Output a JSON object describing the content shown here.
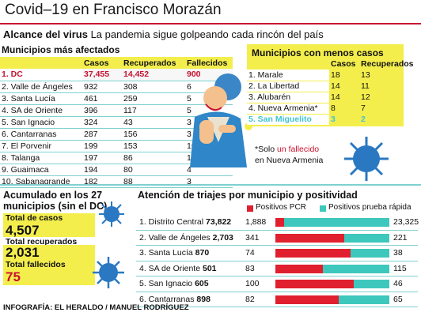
{
  "title": "Covid–19 en Francisco Morazán",
  "subhead": {
    "bold": "Alcance del virus",
    "text": "La pandemia sigue golpeando cada rincón del país"
  },
  "most_affected": {
    "heading": "Municipios más afectados",
    "columns": [
      "Casos",
      "Recuperados",
      "Fallecidos"
    ],
    "rows": [
      [
        "1. DC",
        "37,455",
        "14,452",
        "900"
      ],
      [
        "2. Valle de Ángeles",
        "932",
        "308",
        "6"
      ],
      [
        "3. Santa Lucía",
        "461",
        "259",
        "5"
      ],
      [
        "4. SA de Oriente",
        "396",
        "117",
        "5"
      ],
      [
        "5. San Ignacio",
        "324",
        "43",
        "3"
      ],
      [
        "6. Cantarranas",
        "287",
        "156",
        "3"
      ],
      [
        "7. El Porvenir",
        "199",
        "153",
        "10"
      ],
      [
        "8. Talanga",
        "197",
        "86",
        "10"
      ],
      [
        "9. Guaimaca",
        "194",
        "80",
        "4"
      ],
      [
        "10. Sabanagrande",
        "182",
        "88",
        "3"
      ]
    ]
  },
  "least_affected": {
    "heading": "Municipios con menos casos",
    "columns": [
      "Casos",
      "Recuperados"
    ],
    "rows": [
      [
        "1. Marale",
        "18",
        "13"
      ],
      [
        "2. La Libertad",
        "14",
        "11"
      ],
      [
        "3. Alubarén",
        "14",
        "12"
      ],
      [
        "4. Nueva Armenia*",
        "8",
        "7"
      ],
      [
        "5. San Miguelito",
        "3",
        "2"
      ]
    ]
  },
  "note": {
    "pre": "*Solo ",
    "red": "un fallecido",
    "post": "en Nueva Armenia"
  },
  "accumulated": {
    "heading": "Acumulado en los 27 municipios (sin el DC)",
    "total_cases_label": "Total de casos",
    "total_cases": "4,507",
    "total_recovered_label": "Total  recuperados",
    "total_recovered": "2,031",
    "total_dead_label": "Total fallecidos",
    "total_dead": "75"
  },
  "triage": {
    "heading": "Atención de triajes por municipio y positividad",
    "legend": {
      "pcr": "Positivos PCR",
      "rapid": "Positivos prueba rápida"
    },
    "colors": {
      "pcr": "#e0202e",
      "rapid": "#3ec7bd"
    }
  },
  "chart_data": {
    "type": "bar",
    "title": "Atención de triajes por municipio y positividad",
    "categories": [
      "1. Distrito Central",
      "2. Valle de Ángeles",
      "3. Santa Lucía",
      "4. SA de Oriente",
      "5. San Ignacio",
      "6. Cantarranas"
    ],
    "totals": [
      "73,822",
      "2,703",
      "870",
      "501",
      "605",
      "898"
    ],
    "series": [
      {
        "name": "Positivos PCR",
        "values": [
          1888,
          341,
          74,
          83,
          100,
          82
        ]
      },
      {
        "name": "Positivos prueba rápida",
        "values": [
          23325,
          221,
          38,
          115,
          46,
          65
        ]
      }
    ],
    "stacked": true,
    "normalized": true
  },
  "credit": "INFOGRAFÍA: EL HERALDO / MANUEL RODRÍGUEZ"
}
